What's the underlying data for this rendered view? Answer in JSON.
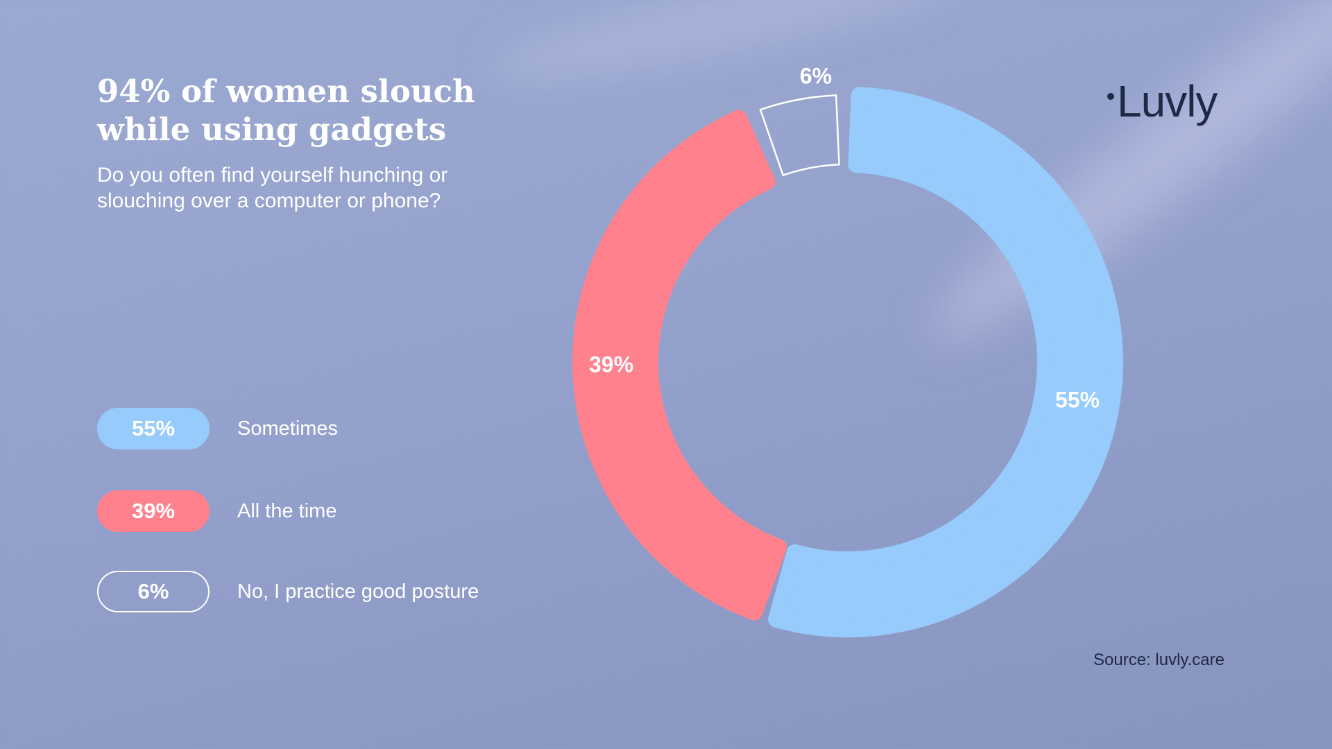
{
  "header": {
    "title": "94% of women slouch while using gadgets",
    "subtitle": "Do you often find yourself hunching or slouching over a computer or phone?"
  },
  "logo": {
    "text": "Luvly"
  },
  "source": "Source: luvly.care",
  "colors": {
    "sometimes": "#96cbfc",
    "all_the_time": "#fe818d",
    "no": "transparent",
    "outline": "#ffffff",
    "text_dark": "#1e2a45"
  },
  "chart_data": {
    "type": "pie",
    "title": "94% of women slouch while using gadgets",
    "subtitle": "Do you often find yourself hunching or slouching over a computer or phone?",
    "categories": [
      "Sometimes",
      "All the time",
      "No, I practice good posture"
    ],
    "values": [
      55,
      39,
      6
    ],
    "value_labels": [
      "55%",
      "39%",
      "6%"
    ],
    "colors": [
      "#96cbfc",
      "#fe818d",
      "outline"
    ],
    "legend_position": "left",
    "style": "donut"
  },
  "legend": [
    {
      "value": "55%",
      "label": "Sometimes"
    },
    {
      "value": "39%",
      "label": "All the time"
    },
    {
      "value": "6%",
      "label": "No, I practice good posture"
    }
  ]
}
